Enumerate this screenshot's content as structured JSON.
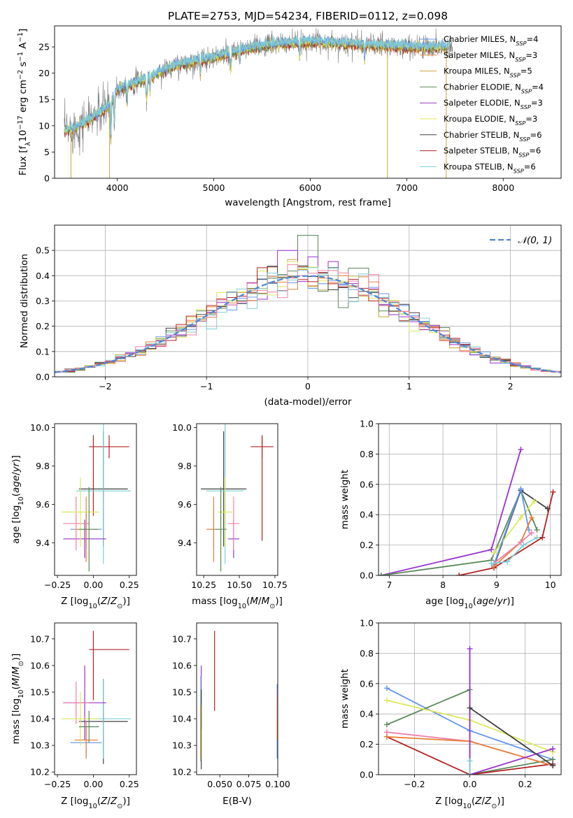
{
  "title": "PLATE=2753, MJD=54234, FIBERID=0112, z=0.098",
  "colors": {
    "Chabrier MILES": "#6495ed",
    "Salpeter MILES": "#e8803a",
    "Kroupa MILES": "#c9a23a",
    "Chabrier ELODIE": "#5a8a5a",
    "Salpeter ELODIE": "#9932cc",
    "Kroupa ELODIE": "#dce85a",
    "Chabrier STELIB": "#404040",
    "Salpeter STELIB": "#b22222",
    "Kroupa STELIB": "#7fcfd6",
    "pink": "#f080a8"
  },
  "chart_data": [
    {
      "id": "spectrum",
      "type": "line",
      "title": "PLATE=2753, MJD=54234, FIBERID=0112, z=0.098",
      "xlabel": "wavelength [Angstrom, rest frame]",
      "ylabel": "Flux [f_λ 10^-17 erg cm^-2 s^-1 A^-1]",
      "ylabel_parts": {
        "pre": "Flux [f",
        "sub": "λ",
        "mid": "10",
        "sup1": "−17",
        "mid2": " erg cm",
        "sup2": "−2",
        "mid3": " s",
        "sup3": "−1",
        "mid4": " A",
        "sup4": "−1",
        "end": "]"
      },
      "xlim": [
        3350,
        8600
      ],
      "ylim": [
        0,
        29
      ],
      "xticks": [
        "4000",
        "5000",
        "6000",
        "7000",
        "8000"
      ],
      "yticks": [
        "0",
        "5",
        "10",
        "15",
        "20",
        "25"
      ],
      "continuum": {
        "x": [
          3450,
          3550,
          3700,
          3900,
          4000,
          4300,
          4600,
          5000,
          5300,
          5600,
          6000,
          6500,
          7000,
          7500
        ],
        "y": [
          9,
          9.5,
          11,
          13.5,
          17,
          19,
          21.5,
          23,
          24.5,
          25.5,
          26,
          25.5,
          25,
          25
        ]
      },
      "legend": [
        {
          "name": "Chabrier MILES",
          "pre": "Chabrier MILES, N",
          "sub": "SSP",
          "post": "=4"
        },
        {
          "name": "Salpeter MILES",
          "pre": "Salpeter MILES, N",
          "sub": "SSP",
          "post": "=3"
        },
        {
          "name": "Kroupa MILES",
          "pre": "Kroupa MILES, N",
          "sub": "SSP",
          "post": "=5"
        },
        {
          "name": "Chabrier ELODIE",
          "pre": "Chabrier ELODIE, N",
          "sub": "SSP",
          "post": "=4"
        },
        {
          "name": "Salpeter ELODIE",
          "pre": "Salpeter ELODIE, N",
          "sub": "SSP",
          "post": "=3"
        },
        {
          "name": "Kroupa ELODIE",
          "pre": "Kroupa ELODIE, N",
          "sub": "SSP",
          "post": "=3"
        },
        {
          "name": "Chabrier STELIB",
          "pre": "Chabrier STELIB, N",
          "sub": "SSP",
          "post": "=6"
        },
        {
          "name": "Salpeter STELIB",
          "pre": "Salpeter STELIB, N",
          "sub": "SSP",
          "post": "=6"
        },
        {
          "name": "Kroupa STELIB",
          "pre": "Kroupa STELIB, N",
          "sub": "SSP",
          "post": "=6"
        }
      ]
    },
    {
      "id": "residuals",
      "type": "histogram",
      "xlabel": "(data-model)/error",
      "ylabel": "Normed distribution",
      "xlim": [
        -2.5,
        2.5
      ],
      "ylim": [
        0,
        0.6
      ],
      "xticks": [
        "−2",
        "−1",
        "0",
        "1",
        "2"
      ],
      "yticks": [
        "0.0",
        "0.1",
        "0.2",
        "0.3",
        "0.4",
        "0.5"
      ],
      "grid": true,
      "legend": "𝒩(0, 1)",
      "bin_width": 0.1,
      "bins_from": -2.5,
      "peak_bins": [
        {
          "x": 0,
          "y": 0.56,
          "series": "Chabrier ELODIE"
        },
        {
          "x": -0.2,
          "y": 0.5,
          "series": "Salpeter ELODIE"
        },
        {
          "x": 0.5,
          "y": 0.43,
          "series": "Chabrier ELODIE"
        }
      ]
    },
    {
      "id": "age_vs_Z",
      "type": "errorbar",
      "xlabel": "Z [log10(Z/Z⊙)]",
      "ylabel": "age [log10(age/yr)]",
      "xlim": [
        -0.27,
        0.3
      ],
      "ylim": [
        9.23,
        10.02
      ],
      "xticks": [
        "−0.25",
        "0.00",
        "0.25"
      ],
      "yticks": [
        "9.4",
        "9.6",
        "9.8",
        "10.0"
      ],
      "points": [
        {
          "series": "Salpeter STELIB",
          "x": 0.11,
          "xerr": 0.14,
          "y": 9.9,
          "yerr": 0.06
        },
        {
          "series": "Salpeter STELIB",
          "x": 0.0,
          "xerr": 0.0,
          "y": 9.75,
          "yerr": 0.21
        },
        {
          "series": "Chabrier STELIB",
          "x": 0.07,
          "xerr": 0.17,
          "y": 9.68,
          "yerr": 0.3
        },
        {
          "series": "Kroupa STELIB",
          "x": 0.07,
          "xerr": 0.19,
          "y": 9.67,
          "yerr": 0.38
        },
        {
          "series": "Chabrier MILES",
          "x": -0.05,
          "xerr": 0.11,
          "y": 9.47,
          "yerr": 0.1
        },
        {
          "series": "Salpeter ELODIE",
          "x": -0.06,
          "xerr": 0.15,
          "y": 9.42,
          "yerr": 0.1
        },
        {
          "series": "pink",
          "x": -0.12,
          "xerr": 0.09,
          "y": 9.5,
          "yerr": 0.14
        },
        {
          "series": "Salpeter MILES",
          "x": -0.05,
          "xerr": 0.08,
          "y": 9.47,
          "yerr": 0.17
        },
        {
          "series": "Kroupa ELODIE",
          "x": -0.09,
          "xerr": 0.13,
          "y": 9.56,
          "yerr": 0.18
        },
        {
          "series": "Chabrier ELODIE",
          "x": -0.03,
          "xerr": 0.07,
          "y": 9.47,
          "yerr": 0.22
        }
      ]
    },
    {
      "id": "age_vs_mass",
      "type": "errorbar",
      "xlabel": "mass [log10(M/M⊙)]",
      "ylabel": "",
      "xlim": [
        10.2,
        10.77
      ],
      "ylim": [
        9.23,
        10.02
      ],
      "xticks": [
        "10.25",
        "10.50",
        "10.75"
      ],
      "yticks": [
        "9.4",
        "9.6",
        "9.8",
        "10.0"
      ],
      "points": [
        {
          "series": "Salpeter STELIB",
          "x": 10.66,
          "xerr": 0.08,
          "y": 9.9,
          "yerr": 0.06
        },
        {
          "series": "Salpeter STELIB",
          "x": 10.66,
          "xerr": 0.0,
          "y": 9.68,
          "yerr": 0.27
        },
        {
          "series": "Chabrier STELIB",
          "x": 10.39,
          "xerr": 0.16,
          "y": 9.68,
          "yerr": 0.3
        },
        {
          "series": "Kroupa STELIB",
          "x": 10.4,
          "xerr": 0.13,
          "y": 9.67,
          "yerr": 0.38
        },
        {
          "series": "Chabrier MILES",
          "x": 10.32,
          "xerr": 0.05,
          "y": 9.47,
          "yerr": 0.1
        },
        {
          "series": "Salpeter ELODIE",
          "x": 10.46,
          "xerr": 0.04,
          "y": 9.42,
          "yerr": 0.1
        },
        {
          "series": "pink",
          "x": 10.46,
          "xerr": 0.04,
          "y": 9.5,
          "yerr": 0.14
        },
        {
          "series": "Salpeter MILES",
          "x": 10.32,
          "xerr": 0.05,
          "y": 9.47,
          "yerr": 0.17
        },
        {
          "series": "Kroupa ELODIE",
          "x": 10.4,
          "xerr": 0.05,
          "y": 9.56,
          "yerr": 0.18
        },
        {
          "series": "Chabrier ELODIE",
          "x": 10.37,
          "xerr": 0.04,
          "y": 9.47,
          "yerr": 0.22
        }
      ]
    },
    {
      "id": "weight_vs_age",
      "type": "line",
      "xlabel": "age log10(age/yr)",
      "ylabel": "mass weight",
      "xlim": [
        6.8,
        10.2
      ],
      "ylim": [
        0,
        1
      ],
      "xticks": [
        "7",
        "8",
        "9",
        "10"
      ],
      "yticks": [
        "0.0",
        "0.2",
        "0.4",
        "0.6",
        "0.8",
        "1.0"
      ],
      "grid": true,
      "series": [
        {
          "name": "Salpeter ELODIE",
          "x": [
            6.85,
            8.9,
            9.45
          ],
          "y": [
            0.0,
            0.17,
            0.83
          ]
        },
        {
          "name": "Chabrier ELODIE",
          "x": [
            6.85,
            8.9,
            9.45,
            9.75
          ],
          "y": [
            0.0,
            0.1,
            0.56,
            0.3
          ]
        },
        {
          "name": "Salpeter STELIB",
          "x": [
            8.3,
            8.95,
            9.85,
            10.05
          ],
          "y": [
            0.0,
            0.05,
            0.25,
            0.55
          ]
        },
        {
          "name": "Chabrier STELIB",
          "x": [
            8.95,
            9.45,
            9.95
          ],
          "y": [
            0.06,
            0.56,
            0.44
          ]
        },
        {
          "name": "Kroupa ELODIE",
          "x": [
            8.95,
            9.45,
            9.7
          ],
          "y": [
            0.15,
            0.38,
            0.49
          ]
        },
        {
          "name": "Chabrier MILES",
          "x": [
            8.95,
            9.45,
            9.6
          ],
          "y": [
            0.07,
            0.57,
            0.3
          ]
        },
        {
          "name": "Salpeter MILES",
          "x": [
            8.95,
            9.45,
            9.65
          ],
          "y": [
            0.06,
            0.22,
            0.38
          ]
        },
        {
          "name": "pink",
          "x": [
            8.95,
            9.45,
            9.65
          ],
          "y": [
            0.08,
            0.22,
            0.28
          ]
        },
        {
          "name": "Kroupa STELIB",
          "x": [
            8.9,
            9.2,
            9.5,
            9.75
          ],
          "y": [
            0.08,
            0.09,
            0.2,
            0.25
          ]
        }
      ]
    },
    {
      "id": "mass_vs_Z",
      "type": "errorbar",
      "xlabel": "Z [log10(Z/Z⊙)]",
      "ylabel": "mass [log10(M/M⊙)]",
      "xlim": [
        -0.27,
        0.3
      ],
      "ylim": [
        10.19,
        10.76
      ],
      "xticks": [
        "−0.25",
        "0.00",
        "0.25"
      ],
      "yticks": [
        "10.2",
        "10.3",
        "10.4",
        "10.5",
        "10.6",
        "10.7"
      ],
      "points": [
        {
          "series": "Salpeter STELIB",
          "x": 0.11,
          "xerr": 0.14,
          "y": 10.66,
          "yerr": 0.0
        },
        {
          "series": "Salpeter STELIB",
          "x": 0.0,
          "xerr": 0.0,
          "y": 10.6,
          "yerr": 0.13
        },
        {
          "series": "Chabrier STELIB",
          "x": 0.07,
          "xerr": 0.17,
          "y": 10.39,
          "yerr": 0.16
        },
        {
          "series": "Kroupa STELIB",
          "x": 0.07,
          "xerr": 0.19,
          "y": 10.4,
          "yerr": 0.15
        },
        {
          "series": "Chabrier MILES",
          "x": -0.05,
          "xerr": 0.11,
          "y": 10.31,
          "yerr": 0.06
        },
        {
          "series": "Salpeter ELODIE",
          "x": -0.06,
          "xerr": 0.15,
          "y": 10.46,
          "yerr": 0.14
        },
        {
          "series": "pink",
          "x": -0.12,
          "xerr": 0.09,
          "y": 10.46,
          "yerr": 0.08
        },
        {
          "series": "Salpeter MILES",
          "x": -0.05,
          "xerr": 0.08,
          "y": 10.32,
          "yerr": 0.07
        },
        {
          "series": "Kroupa ELODIE",
          "x": -0.09,
          "xerr": 0.13,
          "y": 10.4,
          "yerr": 0.1
        },
        {
          "series": "Chabrier ELODIE",
          "x": -0.03,
          "xerr": 0.07,
          "y": 10.37,
          "yerr": 0.06
        }
      ]
    },
    {
      "id": "mass_vs_ebv",
      "type": "errorbar",
      "xlabel": "E(B-V)",
      "ylabel": "",
      "xlim": [
        0.03,
        0.1
      ],
      "ylim": [
        10.19,
        10.76
      ],
      "xticks": [
        "0.050",
        "0.075",
        "0.100"
      ],
      "yticks": [
        "10.2",
        "10.3",
        "10.4",
        "10.5",
        "10.6",
        "10.7"
      ],
      "points": [
        {
          "series": "Salpeter STELIB",
          "x": 0.0455,
          "xerr": 0.0,
          "y": 10.58,
          "yerr": 0.15
        },
        {
          "series": "Salpeter ELODIE",
          "x": 0.034,
          "xerr": 0.0,
          "y": 10.48,
          "yerr": 0.12
        },
        {
          "series": "Kroupa STELIB",
          "x": 0.0335,
          "xerr": 0.0,
          "y": 10.4,
          "yerr": 0.16
        },
        {
          "series": "Chabrier STELIB",
          "x": 0.034,
          "xerr": 0.0,
          "y": 10.36,
          "yerr": 0.15
        },
        {
          "series": "Kroupa MILES",
          "x": 0.0335,
          "xerr": 0.0,
          "y": 10.35,
          "yerr": 0.1
        },
        {
          "series": "Chabrier MILES",
          "x": 0.0995,
          "xerr": 0.0,
          "y": 10.39,
          "yerr": 0.14
        },
        {
          "series": "Salpeter MILES",
          "x": 0.0995,
          "xerr": 0.0,
          "y": 10.4,
          "yerr": 0.08
        },
        {
          "series": "pink",
          "x": 0.0997,
          "xerr": 0.0,
          "y": 10.45,
          "yerr": 0.06
        }
      ]
    },
    {
      "id": "weight_vs_Z",
      "type": "line",
      "xlabel": "Z [log10(Z/Z⊙)]",
      "ylabel": "mass weight",
      "xlim": [
        -0.33,
        0.33
      ],
      "ylim": [
        0,
        1
      ],
      "xticks": [
        "−0.2",
        "0.0",
        "0.2"
      ],
      "yticks": [
        "0.0",
        "0.2",
        "0.4",
        "0.6",
        "0.8",
        "1.0"
      ],
      "grid": true,
      "series": [
        {
          "name": "Chabrier MILES",
          "x": [
            -0.3,
            0.0,
            0.3
          ],
          "y": [
            0.57,
            0.29,
            0.1
          ]
        },
        {
          "name": "Chabrier ELODIE",
          "x": [
            -0.3,
            0.0,
            0.0,
            0.3
          ],
          "y": [
            0.33,
            0.56,
            0.0,
            0.1
          ]
        },
        {
          "name": "Salpeter STELIB",
          "x": [
            -0.3,
            0.0,
            0.3
          ],
          "y": [
            0.25,
            0.0,
            0.07
          ]
        },
        {
          "name": "Kroupa ELODIE",
          "x": [
            -0.3,
            0.0,
            0.3
          ],
          "y": [
            0.49,
            0.36,
            0.15
          ]
        },
        {
          "name": "pink",
          "x": [
            -0.3,
            0.0,
            0.3
          ],
          "y": [
            0.28,
            0.22,
            0.06
          ]
        },
        {
          "name": "Salpeter MILES",
          "x": [
            -0.3,
            0.0,
            0.3
          ],
          "y": [
            0.25,
            0.22,
            0.06
          ]
        },
        {
          "name": "Salpeter ELODIE",
          "x": [
            0.0,
            0.0,
            0.3
          ],
          "y": [
            0.83,
            0.0,
            0.17
          ]
        },
        {
          "name": "Chabrier STELIB",
          "x": [
            0.0,
            0.3
          ],
          "y": [
            0.44,
            0.06
          ]
        },
        {
          "name": "Kroupa STELIB",
          "x": [
            0.0,
            0.0
          ],
          "y": [
            0.09,
            0.0
          ]
        }
      ]
    }
  ]
}
